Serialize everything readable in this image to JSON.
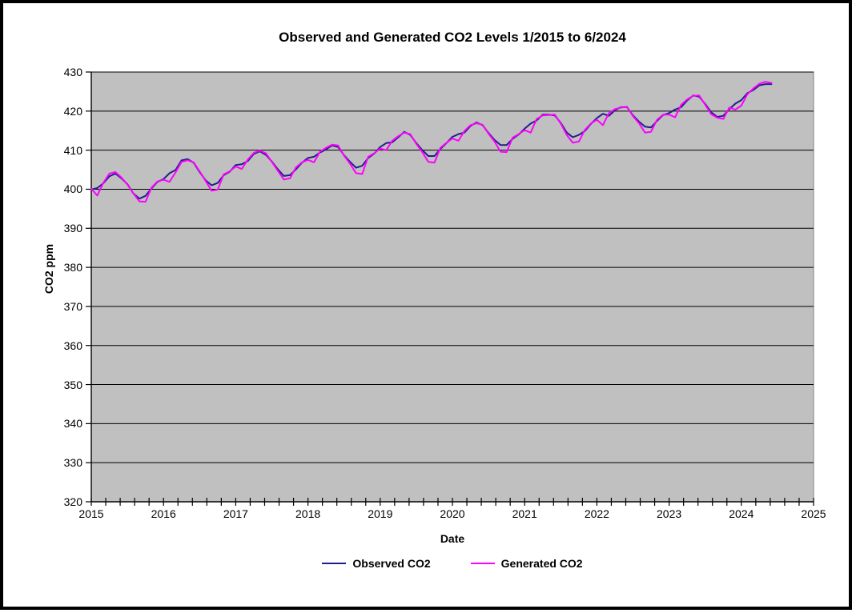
{
  "chart": {
    "title": "Observed and Generated CO2 Levels 1/2015 to 6/2024",
    "xlabel": "Date",
    "ylabel": "CO2 ppm"
  },
  "chart_data": {
    "type": "line",
    "title": "Observed and Generated CO2 Levels 1/2015 to 6/2024",
    "xlabel": "Date",
    "ylabel": "CO2 ppm",
    "xlim": [
      2015,
      2025
    ],
    "ylim": [
      320,
      430
    ],
    "x_ticks": [
      2015,
      2016,
      2017,
      2018,
      2019,
      2020,
      2021,
      2022,
      2023,
      2024,
      2025
    ],
    "y_ticks": [
      320,
      330,
      340,
      350,
      360,
      370,
      380,
      390,
      400,
      410,
      420,
      430
    ],
    "minor_x_tick_interval_years": 0.2,
    "grid": "horizontal-black-lines",
    "plot_bg": "#C0C0C0",
    "legend_position": "bottom-center",
    "x_start": 2015.0,
    "x_step": "monthly",
    "x_range_label": "1/2015 to 6/2024",
    "series": [
      {
        "name": "Observed CO2",
        "color": "#1F1F8C",
        "values": [
          399.9,
          400.3,
          401.5,
          403.3,
          404.0,
          402.8,
          401.3,
          398.9,
          397.6,
          398.3,
          400.2,
          401.9,
          402.6,
          404.1,
          404.9,
          407.4,
          407.7,
          406.8,
          404.4,
          402.3,
          401.0,
          401.6,
          403.6,
          404.5,
          406.2,
          406.4,
          407.2,
          409.0,
          409.7,
          408.8,
          407.1,
          405.1,
          403.4,
          403.6,
          405.1,
          406.8,
          408.0,
          408.3,
          409.4,
          410.2,
          411.2,
          410.8,
          408.7,
          407.0,
          405.5,
          406.0,
          408.0,
          409.1,
          410.8,
          411.8,
          412.0,
          413.3,
          414.7,
          413.9,
          411.8,
          410.0,
          408.5,
          408.5,
          410.3,
          411.8,
          413.4,
          414.1,
          414.5,
          416.2,
          417.1,
          416.4,
          414.4,
          412.6,
          411.3,
          411.3,
          412.9,
          414.0,
          415.5,
          416.8,
          417.6,
          419.1,
          419.1,
          418.9,
          417.0,
          414.5,
          413.3,
          413.9,
          414.9,
          416.7,
          418.2,
          419.3,
          418.8,
          420.2,
          421.0,
          421.0,
          418.9,
          417.3,
          416.0,
          415.8,
          417.5,
          419.0,
          419.5,
          420.4,
          421.0,
          422.7,
          424.0,
          423.7,
          421.8,
          419.7,
          418.5,
          418.8,
          420.5,
          421.9,
          422.8,
          424.6,
          425.4,
          426.6,
          426.9,
          426.9
        ]
      },
      {
        "name": "Generated CO2",
        "color": "#FF00FF",
        "values": [
          400.1,
          398.4,
          401.6,
          404.0,
          404.4,
          403.0,
          401.2,
          398.9,
          396.9,
          396.8,
          400.4,
          402.0,
          402.4,
          401.9,
          404.3,
          407.0,
          407.4,
          406.9,
          404.6,
          402.1,
          399.6,
          399.9,
          403.8,
          404.6,
          405.8,
          405.2,
          407.6,
          409.3,
          409.9,
          409.2,
          407.0,
          404.7,
          402.5,
          402.8,
          405.6,
          406.9,
          407.5,
          406.9,
          409.6,
          410.6,
          411.4,
          411.2,
          408.6,
          406.5,
          404.1,
          403.9,
          408.3,
          409.2,
          410.4,
          410.0,
          412.4,
          413.6,
          414.5,
          414.1,
          411.6,
          409.5,
          407.0,
          406.8,
          410.6,
          411.9,
          413.0,
          412.4,
          414.9,
          416.4,
          416.9,
          416.5,
          414.2,
          412.2,
          409.6,
          409.5,
          413.2,
          414.1,
          415.1,
          414.5,
          418.0,
          418.9,
          419.0,
          419.1,
          416.8,
          413.9,
          411.9,
          412.2,
          415.2,
          416.8,
          417.8,
          416.4,
          419.5,
          420.5,
          420.9,
          421.1,
          418.7,
          416.9,
          414.5,
          414.7,
          417.8,
          419.1,
          419.1,
          418.4,
          421.6,
          423.0,
          423.9,
          424.0,
          421.6,
          419.2,
          418.3,
          418.0,
          420.9,
          420.4,
          421.4,
          424.3,
          425.8,
          427.0,
          427.5,
          427.2
        ]
      }
    ]
  }
}
